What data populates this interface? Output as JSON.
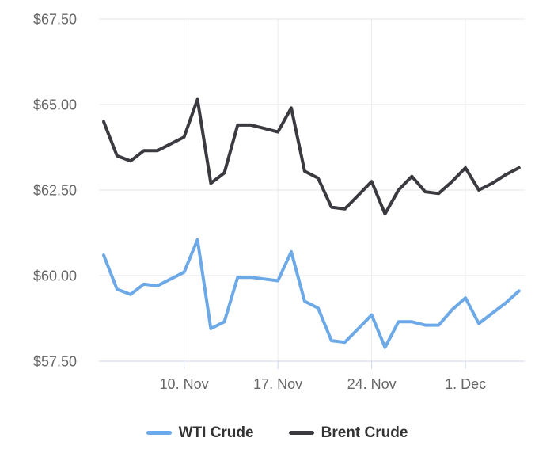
{
  "chart_data": {
    "type": "line",
    "title": "",
    "y_axis": {
      "range": [
        57.5,
        67.5
      ],
      "ticks": [
        {
          "label": "$67.50",
          "value": 67.5
        },
        {
          "label": "$65.00",
          "value": 65.0
        },
        {
          "label": "$62.50",
          "value": 62.5
        },
        {
          "label": "$60.00",
          "value": 60.0
        },
        {
          "label": "$57.50",
          "value": 57.5
        }
      ]
    },
    "x_axis": {
      "num_points": 32,
      "ticks": [
        {
          "label": "10. Nov",
          "day_index": 6
        },
        {
          "label": "17. Nov",
          "day_index": 13
        },
        {
          "label": "24. Nov",
          "day_index": 20
        },
        {
          "label": "1. Dec",
          "day_index": 27
        }
      ]
    },
    "series": [
      {
        "name": "WTI Crude",
        "color": "#6CA9E6",
        "values": [
          60.6,
          59.6,
          59.45,
          59.75,
          59.7,
          59.9,
          60.1,
          61.05,
          58.45,
          58.65,
          59.95,
          59.95,
          59.9,
          59.85,
          60.7,
          59.25,
          59.05,
          58.1,
          58.05,
          58.45,
          58.85,
          57.9,
          58.65,
          58.65,
          58.55,
          58.55,
          59.0,
          59.35,
          58.6,
          58.9,
          59.2,
          59.55
        ]
      },
      {
        "name": "Brent Crude",
        "color": "#3A3A40",
        "values": [
          64.5,
          63.5,
          63.35,
          63.65,
          63.65,
          63.85,
          64.05,
          65.15,
          62.7,
          63.0,
          64.4,
          64.4,
          64.3,
          64.2,
          64.9,
          63.05,
          62.85,
          62.0,
          61.95,
          62.35,
          62.75,
          61.8,
          62.5,
          62.9,
          62.45,
          62.4,
          62.75,
          63.15,
          62.5,
          62.7,
          62.95,
          63.15
        ]
      }
    ],
    "grid": true,
    "legend_position": "bottom-center"
  },
  "colors": {
    "background": "#FFFFFF",
    "gridline_h": "#E6E6E6",
    "gridline_v": "#ECECEC",
    "axis_line": "#CCD6EB",
    "tick_mark": "#CCD6EB",
    "axis_label": "#666666",
    "legend_text": "#333333"
  }
}
